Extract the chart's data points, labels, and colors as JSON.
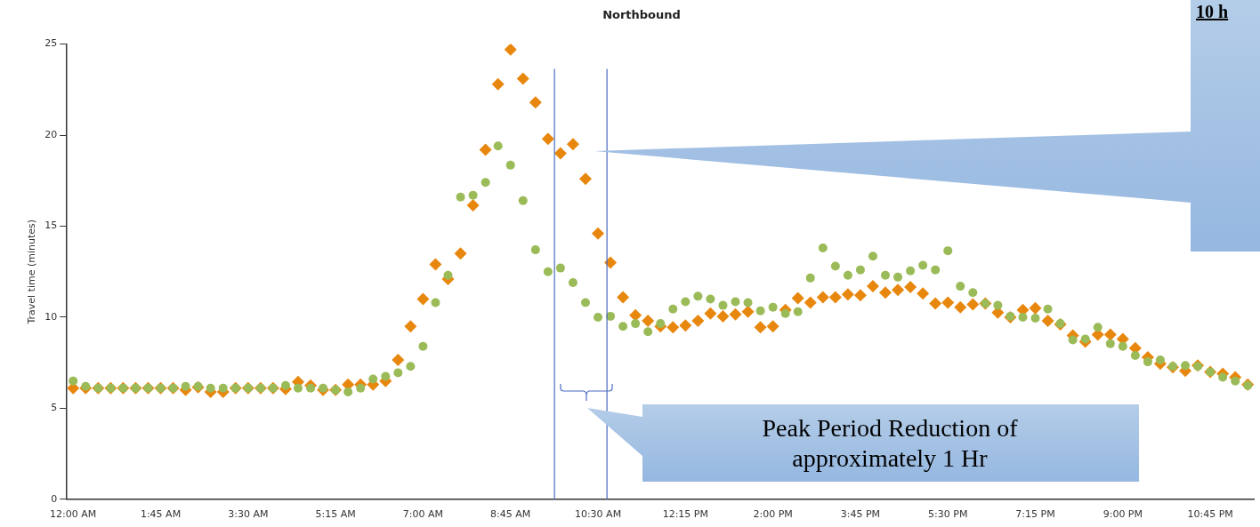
{
  "chart_data": {
    "type": "scatter",
    "title": "Northbound",
    "ylabel": "Travel time (minutes)",
    "x": [
      0,
      0.25,
      0.5,
      0.75,
      1,
      1.25,
      1.5,
      1.75,
      2,
      2.25,
      2.5,
      2.75,
      3,
      3.25,
      3.5,
      3.75,
      4,
      4.25,
      4.5,
      4.75,
      5,
      5.25,
      5.5,
      5.75,
      6,
      6.25,
      6.5,
      6.75,
      7,
      7.25,
      7.5,
      7.75,
      8,
      8.25,
      8.5,
      8.75,
      9,
      9.25,
      9.5,
      9.75,
      10,
      10.25,
      10.5,
      10.75,
      11,
      11.25,
      11.5,
      11.75,
      12,
      12.25,
      12.5,
      12.75,
      13,
      13.25,
      13.5,
      13.75,
      14,
      14.25,
      14.5,
      14.75,
      15,
      15.25,
      15.5,
      15.75,
      16,
      16.25,
      16.5,
      16.75,
      17,
      17.25,
      17.5,
      17.75,
      18,
      18.25,
      18.5,
      18.75,
      19,
      19.25,
      19.5,
      19.75,
      20,
      20.25,
      20.5,
      20.75,
      21,
      21.25,
      21.5,
      21.75,
      22,
      22.25,
      22.5,
      22.75,
      23,
      23.25,
      23.5
    ],
    "series": [
      {
        "color": "#9bbb59",
        "marker": "circle",
        "values": [
          6.5,
          6.2,
          6.1,
          6.1,
          6.1,
          6.1,
          6.1,
          6.1,
          6.1,
          6.2,
          6.2,
          6.1,
          6.1,
          6.1,
          6.1,
          6.1,
          6.1,
          6.25,
          6.1,
          6.1,
          6.1,
          6.0,
          5.9,
          6.1,
          6.6,
          6.75,
          6.95,
          7.3,
          8.4,
          10.8,
          12.3,
          16.6,
          16.7,
          17.4,
          19.4,
          18.35,
          16.4,
          13.7,
          12.5,
          12.7,
          11.9,
          10.8,
          10.0,
          10.05,
          9.5,
          9.65,
          9.2,
          9.65,
          10.45,
          10.85,
          11.15,
          11.0,
          10.65,
          10.85,
          10.8,
          10.35,
          10.55,
          10.2,
          10.3,
          12.15,
          13.8,
          12.8,
          12.3,
          12.6,
          13.35,
          12.3,
          12.2,
          12.55,
          12.85,
          12.6,
          13.65,
          11.7,
          11.35,
          10.75,
          10.65,
          10.05,
          10.0,
          9.95,
          10.45,
          9.65,
          8.75,
          8.8,
          9.45,
          8.55,
          8.4,
          7.9,
          7.55,
          7.65,
          7.3,
          7.35,
          7.3,
          7.0,
          6.7,
          6.5,
          6.25
        ]
      },
      {
        "color": "#e8870e",
        "marker": "diamond",
        "values": [
          6.1,
          6.1,
          6.1,
          6.1,
          6.1,
          6.1,
          6.1,
          6.1,
          6.1,
          6.0,
          6.15,
          5.9,
          5.9,
          6.1,
          6.1,
          6.1,
          6.1,
          6.05,
          6.45,
          6.25,
          6.0,
          6.0,
          6.3,
          6.3,
          6.3,
          6.5,
          7.65,
          9.5,
          11.0,
          12.9,
          12.1,
          13.5,
          16.15,
          19.2,
          22.8,
          24.7,
          23.1,
          21.8,
          19.8,
          19.0,
          19.5,
          17.6,
          14.6,
          13.0,
          11.1,
          10.1,
          9.8,
          9.5,
          9.45,
          9.55,
          9.8,
          10.2,
          10.05,
          10.15,
          10.3,
          9.45,
          9.5,
          10.4,
          11.05,
          10.8,
          11.1,
          11.1,
          11.25,
          11.2,
          11.7,
          11.35,
          11.5,
          11.65,
          11.3,
          10.75,
          10.8,
          10.55,
          10.7,
          10.75,
          10.25,
          10.0,
          10.4,
          10.5,
          9.8,
          9.6,
          9.0,
          8.65,
          9.05,
          9.05,
          8.8,
          8.3,
          7.8,
          7.45,
          7.25,
          7.05,
          7.35,
          7.0,
          6.9,
          6.7,
          6.3
        ]
      }
    ],
    "xlim": [
      -0.125,
      23.62
    ],
    "xticks": [
      {
        "value": 0,
        "label": "12:00 AM"
      },
      {
        "value": 1.75,
        "label": "1:45 AM"
      },
      {
        "value": 3.5,
        "label": "3:30 AM"
      },
      {
        "value": 5.25,
        "label": "5:15 AM"
      },
      {
        "value": 7,
        "label": "7:00 AM"
      },
      {
        "value": 8.75,
        "label": "8:45 AM"
      },
      {
        "value": 10.5,
        "label": "10:30 AM"
      },
      {
        "value": 12.25,
        "label": "12:15 PM"
      },
      {
        "value": 14,
        "label": "2:00 PM"
      },
      {
        "value": 15.75,
        "label": "3:45 PM"
      },
      {
        "value": 17.5,
        "label": "5:30 PM"
      },
      {
        "value": 19.25,
        "label": "7:15 PM"
      },
      {
        "value": 21,
        "label": "9:00 PM"
      },
      {
        "value": 22.75,
        "label": "10:45 PM"
      }
    ],
    "ylim": [
      0,
      25
    ],
    "yticks": [
      0,
      5,
      10,
      15,
      20,
      25
    ],
    "grid": false,
    "legend": false,
    "ref_lines": [
      {
        "axis": "x",
        "value": 9.63,
        "color": "#4a6bbf"
      },
      {
        "axis": "x",
        "value": 10.68,
        "color": "#4a6bbf"
      }
    ],
    "annotations": [
      "Peak Period Reduction of approximately 1 Hr",
      "10 h"
    ]
  }
}
